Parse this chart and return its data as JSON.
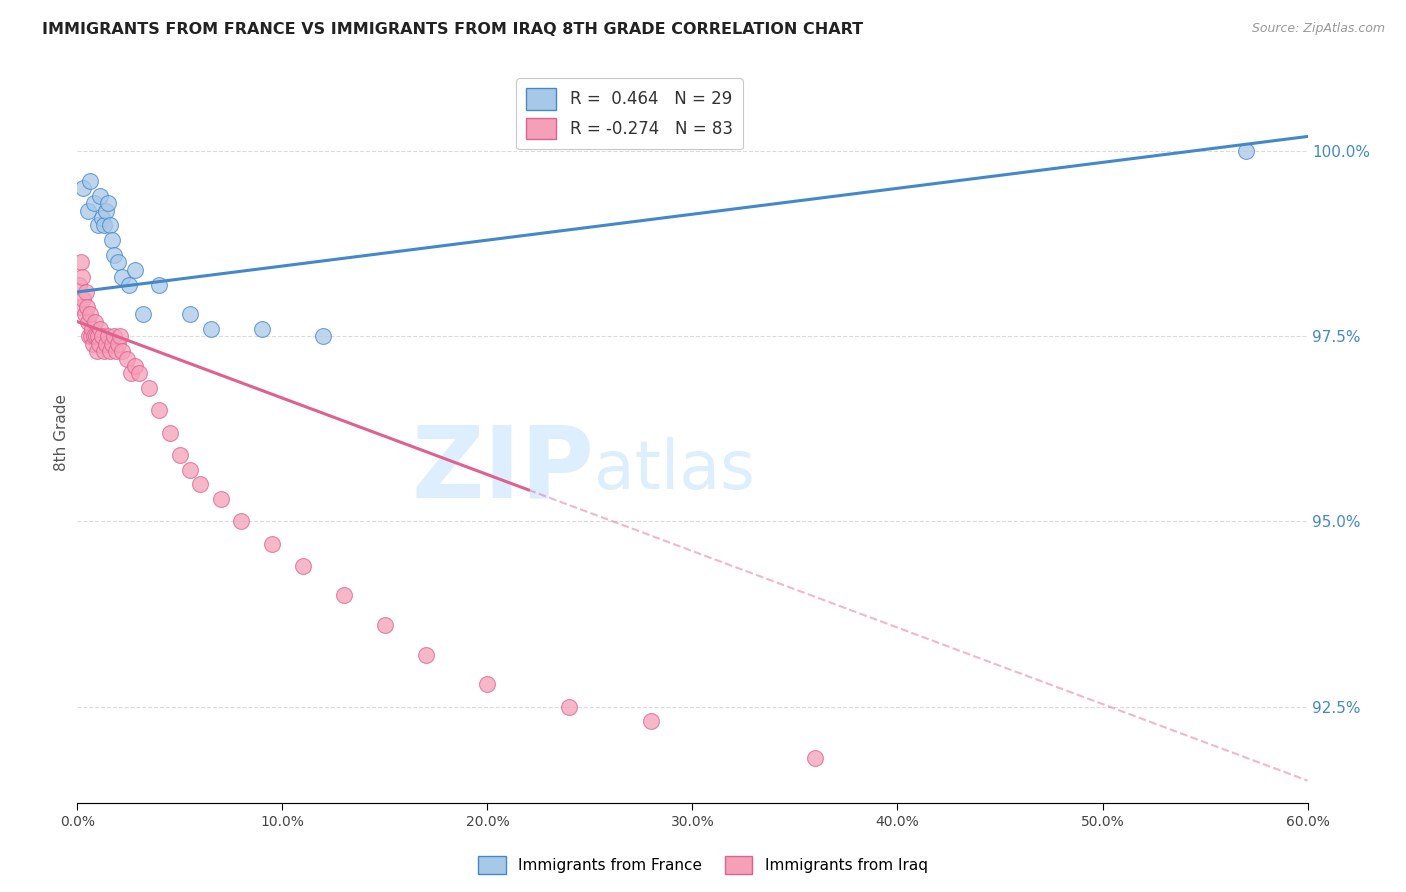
{
  "title": "IMMIGRANTS FROM FRANCE VS IMMIGRANTS FROM IRAQ 8TH GRADE CORRELATION CHART",
  "source": "Source: ZipAtlas.com",
  "ylabel": "8th Grade",
  "legend_blue_label": "Immigrants from France",
  "legend_pink_label": "Immigrants from Iraq",
  "r_blue": 0.464,
  "n_blue": 29,
  "r_pink": -0.274,
  "n_pink": 83,
  "blue_color": "#a8c8e8",
  "pink_color": "#f4a0b8",
  "blue_line_color": "#4488cc",
  "pink_line_color": "#e06090",
  "xlim": [
    0.0,
    60.0
  ],
  "ylim": [
    91.2,
    101.2
  ],
  "right_yticks": [
    92.5,
    95.0,
    97.5,
    100.0
  ],
  "blue_scatter_x": [
    0.3,
    0.5,
    0.6,
    0.8,
    1.0,
    1.1,
    1.2,
    1.3,
    1.4,
    1.5,
    1.6,
    1.7,
    1.8,
    2.0,
    2.2,
    2.5,
    2.8,
    3.2,
    4.0,
    5.5,
    6.5,
    9.0,
    12.0,
    57.0
  ],
  "blue_scatter_y": [
    99.5,
    99.2,
    99.6,
    99.3,
    99.0,
    99.4,
    99.1,
    99.0,
    99.2,
    99.3,
    99.0,
    98.8,
    98.6,
    98.5,
    98.3,
    98.2,
    98.4,
    97.8,
    98.2,
    97.8,
    97.6,
    97.6,
    97.5,
    100.0
  ],
  "pink_scatter_x": [
    0.1,
    0.15,
    0.2,
    0.25,
    0.3,
    0.35,
    0.4,
    0.45,
    0.5,
    0.55,
    0.6,
    0.65,
    0.7,
    0.75,
    0.8,
    0.85,
    0.9,
    0.95,
    1.0,
    1.05,
    1.1,
    1.2,
    1.3,
    1.4,
    1.5,
    1.6,
    1.7,
    1.8,
    1.9,
    2.0,
    2.1,
    2.2,
    2.4,
    2.6,
    2.8,
    3.0,
    3.5,
    4.0,
    4.5,
    5.0,
    5.5,
    6.0,
    7.0,
    8.0,
    9.5,
    11.0,
    13.0,
    15.0,
    17.0,
    20.0,
    24.0,
    28.0,
    36.0
  ],
  "pink_scatter_y": [
    98.2,
    97.9,
    98.5,
    98.3,
    98.0,
    97.8,
    98.1,
    97.9,
    97.7,
    97.5,
    97.8,
    97.5,
    97.6,
    97.4,
    97.5,
    97.7,
    97.5,
    97.3,
    97.5,
    97.4,
    97.6,
    97.5,
    97.3,
    97.4,
    97.5,
    97.3,
    97.4,
    97.5,
    97.3,
    97.4,
    97.5,
    97.3,
    97.2,
    97.0,
    97.1,
    97.0,
    96.8,
    96.5,
    96.2,
    95.9,
    95.7,
    95.5,
    95.3,
    95.0,
    94.7,
    94.4,
    94.0,
    93.6,
    93.2,
    92.8,
    92.5,
    92.3,
    91.8
  ],
  "blue_trend_x0": 0.0,
  "blue_trend_x1": 60.0,
  "blue_trend_y0": 98.1,
  "blue_trend_y1": 100.2,
  "pink_trend_x0": 0.0,
  "pink_trend_x1": 60.0,
  "pink_trend_y0": 97.7,
  "pink_trend_y1": 91.5,
  "pink_solid_end": 22.0,
  "grid_color": "#cccccc",
  "watermark_color": "#ddeeff"
}
